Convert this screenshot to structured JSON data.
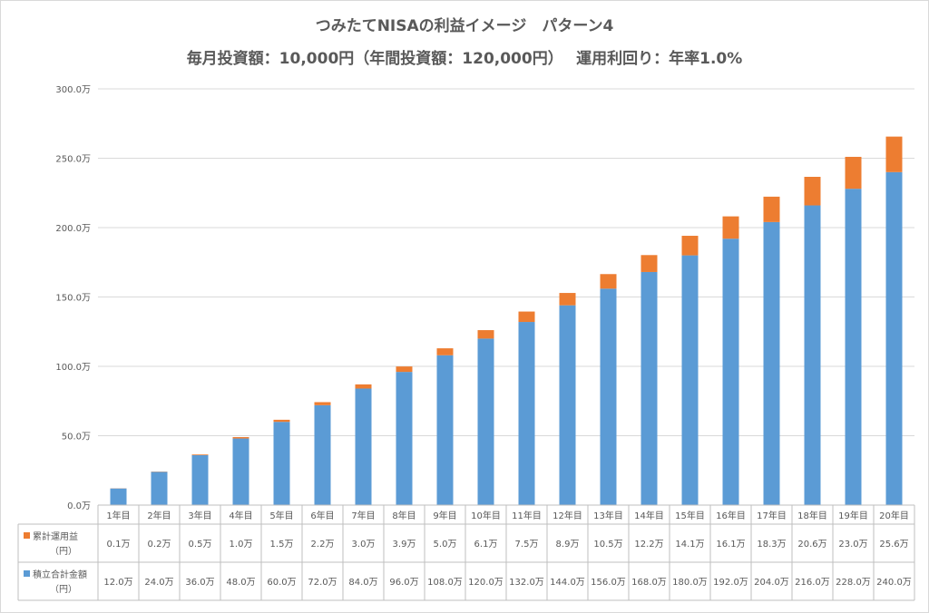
{
  "title": "つみたてNISAの利益イメージ　パターン4",
  "subtitle": "毎月投資額：10,000円（年間投資額：120,000円）　 運用利回り：年率1.0%",
  "chart_data": {
    "type": "bar",
    "stacked": true,
    "title": "つみたてNISAの利益イメージ　パターン4",
    "subtitle": "毎月投資額：10,000円（年間投資額：120,000円）　 運用利回り：年率1.0%",
    "ylim": [
      0,
      300
    ],
    "ytick_values": [
      0,
      50,
      100,
      150,
      200,
      250,
      300
    ],
    "ytick_labels": [
      "0.0万",
      "50.0万",
      "100.0万",
      "150.0万",
      "200.0万",
      "250.0万",
      "300.0万"
    ],
    "grid": true,
    "categories": [
      "1年目",
      "2年目",
      "3年目",
      "4年目",
      "5年目",
      "6年目",
      "7年目",
      "8年目",
      "9年目",
      "10年目",
      "11年目",
      "12年目",
      "13年目",
      "14年目",
      "15年目",
      "16年目",
      "17年目",
      "18年目",
      "19年目",
      "20年目"
    ],
    "series": [
      {
        "name": "積立合計金額（円）",
        "color": "#5b9bd5",
        "values": [
          12.0,
          24.0,
          36.0,
          48.0,
          60.0,
          72.0,
          84.0,
          96.0,
          108.0,
          120.0,
          132.0,
          144.0,
          156.0,
          168.0,
          180.0,
          192.0,
          204.0,
          216.0,
          228.0,
          240.0
        ],
        "labels": [
          "12.0万",
          "24.0万",
          "36.0万",
          "48.0万",
          "60.0万",
          "72.0万",
          "84.0万",
          "96.0万",
          "108.0万",
          "120.0万",
          "132.0万",
          "144.0万",
          "156.0万",
          "168.0万",
          "180.0万",
          "192.0万",
          "204.0万",
          "216.0万",
          "228.0万",
          "240.0万"
        ]
      },
      {
        "name": "累計運用益（円）",
        "color": "#ed7d31",
        "values": [
          0.1,
          0.2,
          0.5,
          1.0,
          1.5,
          2.2,
          3.0,
          3.9,
          5.0,
          6.1,
          7.5,
          8.9,
          10.5,
          12.2,
          14.1,
          16.1,
          18.3,
          20.6,
          23.0,
          25.6
        ],
        "labels": [
          "0.1万",
          "0.2万",
          "0.5万",
          "1.0万",
          "1.5万",
          "2.2万",
          "3.0万",
          "3.9万",
          "5.0万",
          "6.1万",
          "7.5万",
          "8.9万",
          "10.5万",
          "12.2万",
          "14.1万",
          "16.1万",
          "18.3万",
          "20.6万",
          "23.0万",
          "25.6万"
        ]
      }
    ],
    "table": {
      "row_order": [
        1,
        0
      ],
      "row_labels": [
        [
          "累計運用益",
          "（円）"
        ],
        [
          "積立合計金額",
          "（円）"
        ]
      ]
    }
  }
}
